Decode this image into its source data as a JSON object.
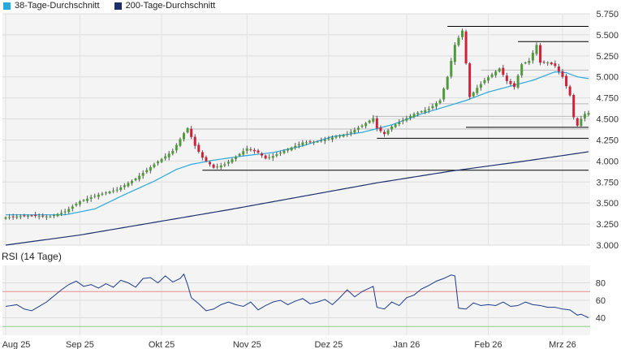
{
  "legend": {
    "sma38": "38-Tage-Durchschnitt",
    "sma200": "200-Tage-Durchschnitt"
  },
  "colors": {
    "sma38": "#29a8dd",
    "sma200": "#1c2f6b",
    "up": "#4f9a3a",
    "down": "#d0213b",
    "rsi": "#1c3b8c",
    "rsi_upper": "#e98b8b",
    "rsi_lower": "#8fcf85",
    "support": "#000000"
  },
  "chart_data": [
    {
      "type": "candlestick",
      "title": "",
      "y_ticks": [
        "5.750",
        "5.500",
        "5.250",
        "5.000",
        "4.750",
        "4.500",
        "4.250",
        "4.000",
        "3.750",
        "3.500",
        "3.250",
        "3.000"
      ],
      "ylim": [
        3000,
        5750
      ],
      "x_ticks": [
        "Aug 25",
        "Sep 25",
        "Okt 25",
        "Nov 25",
        "Dez 25",
        "Jan 26",
        "Feb 26",
        "Mrz 26"
      ],
      "x_tick_positions": [
        0,
        20,
        42,
        65,
        87,
        108,
        130,
        150
      ],
      "grid": true,
      "candle_count": 158,
      "close_key_points": [
        [
          0,
          3330
        ],
        [
          6,
          3350
        ],
        [
          12,
          3340
        ],
        [
          16,
          3400
        ],
        [
          20,
          3520
        ],
        [
          25,
          3600
        ],
        [
          30,
          3660
        ],
        [
          35,
          3790
        ],
        [
          40,
          3960
        ],
        [
          45,
          4120
        ],
        [
          48,
          4330
        ],
        [
          49,
          4390
        ],
        [
          51,
          4180
        ],
        [
          53,
          4040
        ],
        [
          56,
          3920
        ],
        [
          59,
          3960
        ],
        [
          62,
          4050
        ],
        [
          65,
          4150
        ],
        [
          68,
          4100
        ],
        [
          70,
          4030
        ],
        [
          72,
          4060
        ],
        [
          76,
          4140
        ],
        [
          80,
          4220
        ],
        [
          84,
          4230
        ],
        [
          88,
          4280
        ],
        [
          92,
          4320
        ],
        [
          96,
          4420
        ],
        [
          99,
          4510
        ],
        [
          100,
          4390
        ],
        [
          102,
          4320
        ],
        [
          104,
          4410
        ],
        [
          106,
          4460
        ],
        [
          110,
          4560
        ],
        [
          114,
          4620
        ],
        [
          117,
          4720
        ],
        [
          119,
          5000
        ],
        [
          121,
          5380
        ],
        [
          123,
          5550
        ],
        [
          124,
          5160
        ],
        [
          125,
          4760
        ],
        [
          127,
          4870
        ],
        [
          129,
          4960
        ],
        [
          131,
          5030
        ],
        [
          133,
          5100
        ],
        [
          135,
          4950
        ],
        [
          137,
          4880
        ],
        [
          139,
          5150
        ],
        [
          141,
          5190
        ],
        [
          143,
          5380
        ],
        [
          144,
          5170
        ],
        [
          146,
          5170
        ],
        [
          148,
          5130
        ],
        [
          150,
          5000
        ],
        [
          152,
          4780
        ],
        [
          153,
          4520
        ],
        [
          154,
          4420
        ],
        [
          155,
          4500
        ],
        [
          156,
          4560
        ],
        [
          157,
          4570
        ]
      ],
      "sma38_key_points": [
        [
          0,
          3360
        ],
        [
          16,
          3360
        ],
        [
          24,
          3430
        ],
        [
          32,
          3600
        ],
        [
          40,
          3760
        ],
        [
          46,
          3900
        ],
        [
          50,
          3960
        ],
        [
          56,
          4010
        ],
        [
          64,
          4060
        ],
        [
          72,
          4100
        ],
        [
          80,
          4180
        ],
        [
          88,
          4290
        ],
        [
          96,
          4340
        ],
        [
          104,
          4430
        ],
        [
          112,
          4560
        ],
        [
          118,
          4640
        ],
        [
          124,
          4720
        ],
        [
          130,
          4820
        ],
        [
          136,
          4890
        ],
        [
          142,
          4960
        ],
        [
          148,
          5060
        ],
        [
          151,
          5050
        ],
        [
          154,
          5000
        ],
        [
          157,
          4980
        ]
      ],
      "sma200_key_points": [
        [
          0,
          3000
        ],
        [
          20,
          3120
        ],
        [
          40,
          3270
        ],
        [
          60,
          3420
        ],
        [
          80,
          3580
        ],
        [
          100,
          3740
        ],
        [
          120,
          3880
        ],
        [
          140,
          4000
        ],
        [
          157,
          4110
        ]
      ],
      "support_lines": [
        {
          "y": 5600,
          "x_from": 119,
          "x_to": 157
        },
        {
          "y": 5420,
          "x_from": 138,
          "x_to": 157
        },
        {
          "y": 4400,
          "x_from": 124,
          "x_to": 157
        },
        {
          "y": 4270,
          "x_from": 100,
          "x_to": 157
        },
        {
          "y": 3890,
          "x_from": 53,
          "x_to": 157
        }
      ],
      "guide_lines": [
        {
          "y": 4380,
          "x_from": 49,
          "x_to": 157
        },
        {
          "y": 4530,
          "x_from": 99,
          "x_to": 157
        },
        {
          "y": 4680,
          "x_from": 114,
          "x_to": 157
        },
        {
          "y": 5080,
          "x_from": 128,
          "x_to": 157
        }
      ]
    },
    {
      "type": "line",
      "title": "RSI (14 Tage)",
      "y_ticks": [
        "80",
        "60",
        "40"
      ],
      "ylim": [
        20,
        100
      ],
      "upper_band": 70,
      "lower_band": 30,
      "values_key_points": [
        [
          0,
          53
        ],
        [
          3,
          55
        ],
        [
          5,
          50
        ],
        [
          7,
          48
        ],
        [
          9,
          53
        ],
        [
          11,
          58
        ],
        [
          13,
          65
        ],
        [
          15,
          72
        ],
        [
          17,
          78
        ],
        [
          19,
          82
        ],
        [
          21,
          76
        ],
        [
          23,
          78
        ],
        [
          25,
          74
        ],
        [
          27,
          79
        ],
        [
          29,
          75
        ],
        [
          31,
          83
        ],
        [
          33,
          80
        ],
        [
          35,
          75
        ],
        [
          37,
          85
        ],
        [
          39,
          86
        ],
        [
          41,
          80
        ],
        [
          43,
          88
        ],
        [
          45,
          81
        ],
        [
          47,
          85
        ],
        [
          48,
          90
        ],
        [
          49,
          78
        ],
        [
          50,
          63
        ],
        [
          52,
          56
        ],
        [
          54,
          48
        ],
        [
          56,
          50
        ],
        [
          58,
          55
        ],
        [
          60,
          58
        ],
        [
          62,
          55
        ],
        [
          64,
          53
        ],
        [
          66,
          58
        ],
        [
          68,
          49
        ],
        [
          70,
          54
        ],
        [
          72,
          58
        ],
        [
          74,
          60
        ],
        [
          76,
          55
        ],
        [
          78,
          59
        ],
        [
          80,
          62
        ],
        [
          82,
          56
        ],
        [
          84,
          58
        ],
        [
          86,
          61
        ],
        [
          88,
          55
        ],
        [
          90,
          63
        ],
        [
          92,
          72
        ],
        [
          94,
          64
        ],
        [
          96,
          70
        ],
        [
          98,
          74
        ],
        [
          99,
          76
        ],
        [
          100,
          52
        ],
        [
          102,
          50
        ],
        [
          104,
          58
        ],
        [
          106,
          54
        ],
        [
          108,
          63
        ],
        [
          110,
          66
        ],
        [
          112,
          73
        ],
        [
          114,
          77
        ],
        [
          116,
          82
        ],
        [
          118,
          85
        ],
        [
          120,
          89
        ],
        [
          121,
          88
        ],
        [
          122,
          51
        ],
        [
          124,
          50
        ],
        [
          126,
          57
        ],
        [
          128,
          54
        ],
        [
          130,
          55
        ],
        [
          132,
          54
        ],
        [
          134,
          58
        ],
        [
          136,
          53
        ],
        [
          138,
          54
        ],
        [
          140,
          58
        ],
        [
          142,
          55
        ],
        [
          144,
          54
        ],
        [
          146,
          52
        ],
        [
          148,
          52
        ],
        [
          150,
          50
        ],
        [
          152,
          49
        ],
        [
          154,
          43
        ],
        [
          155,
          44
        ],
        [
          156,
          42
        ],
        [
          157,
          40
        ]
      ]
    }
  ]
}
